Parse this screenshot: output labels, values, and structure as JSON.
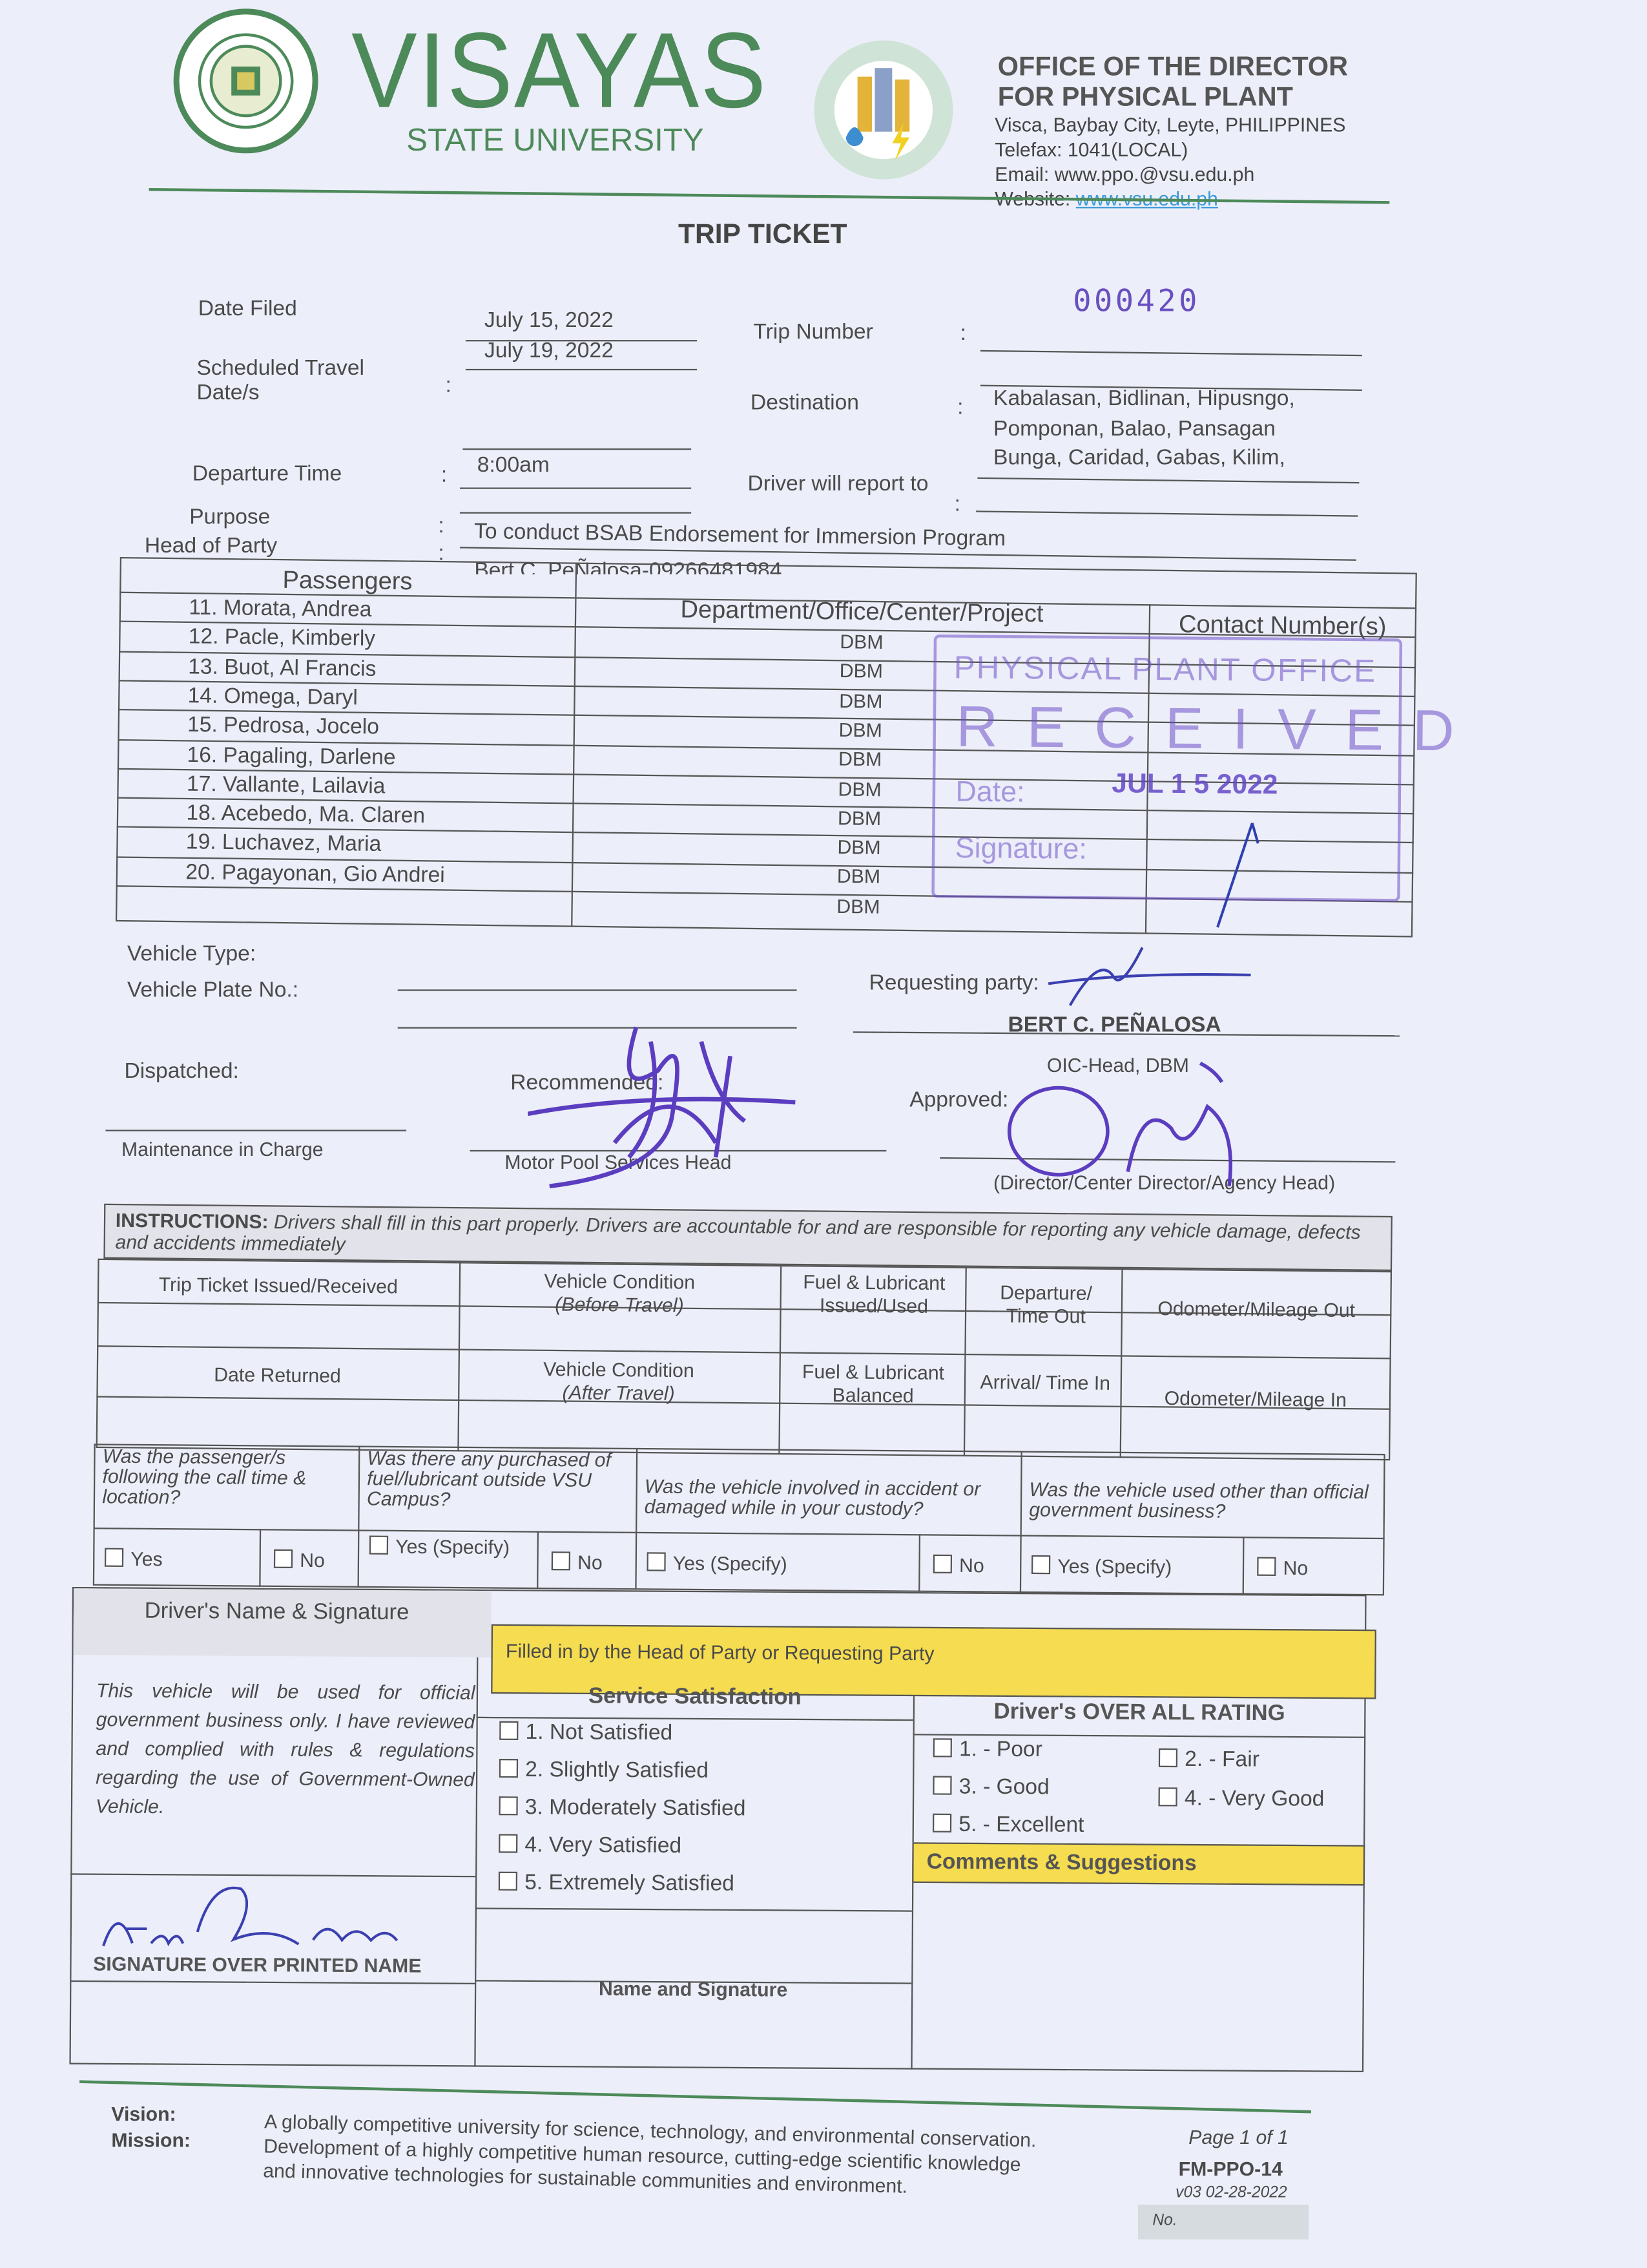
{
  "header": {
    "university_seal_text": "VISAYAS STATE UNIVERSITY",
    "university_name": "VISAYAS",
    "university_subname": "STATE UNIVERSITY",
    "office_logo_text": "PHYSICAL PLANT OFFICE",
    "office_line1": "OFFICE OF THE DIRECTOR",
    "office_line2": "FOR PHYSICAL PLANT",
    "address": "Visca, Baybay City, Leyte, PHILIPPINES",
    "telefax": "Telefax: 1041(LOCAL)",
    "email": "Email: www.ppo.@vsu.edu.ph",
    "website_label": "Website:",
    "website_link": "www.vsu.edu.ph",
    "brand_color": "#4d8a5a",
    "link_color": "#3a9ad9"
  },
  "title": "TRIP TICKET",
  "fields": {
    "date_filed_label": "Date Filed",
    "date_filed": "July 15, 2022",
    "scheduled_label": "Scheduled Travel Date/s",
    "scheduled": "July 19, 2022",
    "departure_label": "Departure Time",
    "departure": "8:00am",
    "purpose_label": "Purpose",
    "purpose": "To conduct BSAB Endorsement for Immersion Program",
    "head_label": "Head of Party",
    "head": "Bert C. PeÑalosa-09266481984",
    "trip_number_label": "Trip Number",
    "trip_number_stamp": "000420",
    "destination_label": "Destination",
    "destination_lines": [
      "Kabalasan, Bidlinan, Hipusngo,",
      "Pomponan, Balao, Pansagan",
      "Bunga, Caridad, Gabas, Kilim,"
    ],
    "report_label": "Driver will report to",
    "colon": ":"
  },
  "passengers": {
    "headers": [
      "Passengers",
      "Department/Office/Center/Project",
      "Contact Number(s)"
    ],
    "rows": [
      {
        "name": "11.  Morata, Andrea",
        "dept": "DBM"
      },
      {
        "name": "12.  Pacle, Kimberly",
        "dept": "DBM"
      },
      {
        "name": "13.  Buot, Al Francis",
        "dept": "DBM"
      },
      {
        "name": "14.  Omega, Daryl",
        "dept": "DBM"
      },
      {
        "name": "15.  Pedrosa, Jocelo",
        "dept": "DBM"
      },
      {
        "name": "16.  Pagaling, Darlene",
        "dept": "DBM"
      },
      {
        "name": "17.  Vallante, Lailavia",
        "dept": "DBM"
      },
      {
        "name": "18.  Acebedo, Ma. Claren",
        "dept": "DBM"
      },
      {
        "name": "19.  Luchavez, Maria",
        "dept": "DBM"
      },
      {
        "name": "20.  Pagayonan, Gio Andrei",
        "dept": "DBM"
      }
    ]
  },
  "received_stamp": {
    "office": "PHYSICAL PLANT OFFICE",
    "word": "RECEIVED",
    "date_label": "Date:",
    "date": "JUL 1 5 2022",
    "signature_label": "Signature:",
    "color": "#6e50c8"
  },
  "vehicle": {
    "type_label": "Vehicle Type:",
    "plate_label": "Vehicle Plate No.:",
    "requesting_label": "Requesting party:",
    "requesting_name": "BERT C. PEÑALOSA",
    "requesting_title": "OIC-Head, DBM",
    "dispatched_label": "Dispatched:",
    "maintenance_label": "Maintenance in Charge",
    "recommended_label": "Recommended:",
    "motorpool_label": "Motor Pool Services Head",
    "approved_label": "Approved:",
    "director_label": "(Director/Center Director/Agency Head)"
  },
  "instructions": {
    "lead": "INSTRUCTIONS:",
    "text": "Drivers shall fill in this part properly.  Drivers are accountable for and are responsible for reporting any vehicle damage, defects and accidents immediately",
    "row1": [
      "Trip Ticket Issued/Received",
      "Vehicle Condition",
      "(Before Travel)",
      "Fuel & Lubricant Issued/Used",
      "Departure/ Time Out",
      "Odometer/Mileage Out"
    ],
    "row2": [
      "Date Returned",
      "Vehicle Condition",
      "(After Travel)",
      "Fuel & Lubricant Balanced",
      "Arrival/ Time In",
      "Odometer/Mileage In"
    ]
  },
  "questions": [
    {
      "q": "Was the passenger/s following the call time & location?",
      "yes": "Yes",
      "no": "No"
    },
    {
      "q": "Was there any purchased of fuel/lubricant outside VSU Campus?",
      "yes": "Yes (Specify)",
      "no": "No"
    },
    {
      "q": "Was the vehicle involved in accident or damaged while in your custody?",
      "yes": "Yes (Specify)",
      "no": "No"
    },
    {
      "q": "Was the vehicle used other than official government business?",
      "yes": "Yes (Specify)",
      "no": "No"
    }
  ],
  "driver": {
    "header": "Driver's Name & Signature",
    "statement": "This vehicle will be used for official government business only.  I have reviewed and complied with rules & regulations regarding the use of Government-Owned Vehicle.",
    "signature_caption": "SIGNATURE OVER PRINTED NAME"
  },
  "evaluation": {
    "banner": "Filled in by the Head of Party or Requesting Party",
    "banner_color": "#f5dc50",
    "service_header": "Service Satisfaction",
    "service_items": [
      "1.  Not Satisfied",
      "2.  Slightly Satisfied",
      "3.  Moderately Satisfied",
      "4.  Very Satisfied",
      "5.  Extremely Satisfied"
    ],
    "name_signature": "Name and Signature",
    "rating_header": "Driver's OVER ALL RATING",
    "rating_items": [
      "1. - Poor",
      "2. - Fair",
      "3. - Good",
      "4. - Very Good",
      "5. - Excellent"
    ],
    "comments_header": "Comments & Suggestions"
  },
  "footer": {
    "vision_label": "Vision:",
    "mission_label": "Mission:",
    "vision": "A globally competitive university for science, technology, and environmental conservation.",
    "mission_lines": [
      "Development of a highly competitive human resource, cutting-edge scientific knowledge",
      "and innovative technologies for sustainable communities and environment."
    ],
    "page": "Page 1 of 1",
    "form_code": "FM-PPO-14",
    "version": "v03 02-28-2022",
    "no_label": "No."
  }
}
